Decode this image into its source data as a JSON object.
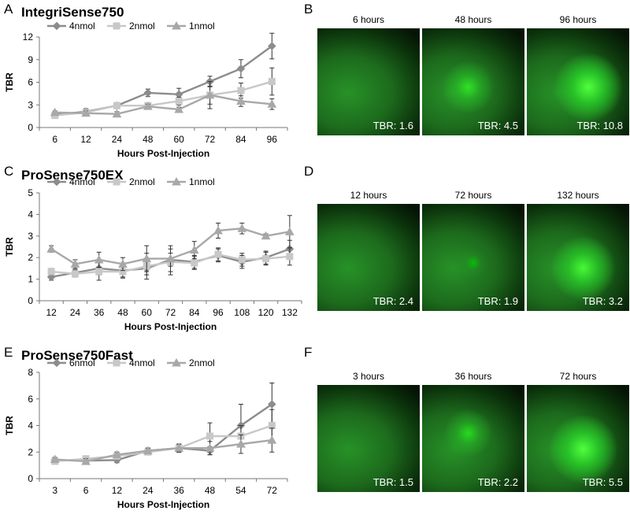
{
  "chart_data": [
    {
      "type": "line",
      "panel": "A",
      "title": "IntegriSense750",
      "xlabel": "Hours Post-Injection",
      "ylabel": "TBR",
      "categories": [
        "6",
        "12",
        "24",
        "48",
        "60",
        "72",
        "84",
        "96"
      ],
      "ylim": [
        0,
        12
      ],
      "yticks": [
        0,
        3,
        6,
        9,
        12
      ],
      "legend": "top",
      "grid": false,
      "series": [
        {
          "name": "4nmol",
          "marker": "diamond",
          "color": "#8c8c8c",
          "values": [
            1.7,
            2.1,
            2.9,
            4.6,
            4.4,
            6.1,
            7.8,
            10.8
          ],
          "errors": [
            0.3,
            0.4,
            0.4,
            0.5,
            0.8,
            0.7,
            1.2,
            1.7
          ]
        },
        {
          "name": "2nmol",
          "marker": "square",
          "color": "#c8c8c8",
          "values": [
            1.6,
            2.0,
            2.9,
            2.9,
            3.5,
            4.3,
            4.9,
            6.1
          ],
          "errors": [
            0.3,
            0.3,
            0.3,
            0.4,
            0.5,
            1.2,
            1.0,
            1.8
          ]
        },
        {
          "name": "1nmol",
          "marker": "triangle",
          "color": "#a8a8a8",
          "values": [
            2.0,
            1.9,
            1.8,
            2.8,
            2.4,
            4.3,
            3.5,
            3.1
          ],
          "errors": [
            0.2,
            0.3,
            0.3,
            0.3,
            0.3,
            1.8,
            0.7,
            0.7
          ]
        }
      ]
    },
    {
      "type": "line",
      "panel": "C",
      "title": "ProSense750EX",
      "xlabel": "Hours Post-Injection",
      "ylabel": "TBR",
      "categories": [
        "12",
        "24",
        "36",
        "48",
        "60",
        "72",
        "84",
        "96",
        "108",
        "120",
        "132"
      ],
      "ylim": [
        0,
        5
      ],
      "yticks": [
        0,
        1,
        2,
        3,
        4,
        5
      ],
      "legend": "top",
      "grid": false,
      "series": [
        {
          "name": "4nmol",
          "marker": "diamond",
          "color": "#8c8c8c",
          "values": [
            1.1,
            1.3,
            1.5,
            1.4,
            1.5,
            1.9,
            1.8,
            2.1,
            1.8,
            2.0,
            2.4
          ],
          "errors": [
            0.15,
            0.15,
            0.3,
            0.3,
            0.3,
            0.3,
            0.3,
            0.3,
            0.3,
            0.3,
            0.4
          ]
        },
        {
          "name": "2nmol",
          "marker": "square",
          "color": "#c8c8c8",
          "values": [
            1.35,
            1.25,
            1.35,
            1.35,
            1.6,
            1.8,
            1.75,
            2.15,
            1.9,
            1.95,
            2.05
          ],
          "errors": [
            0.15,
            0.15,
            0.4,
            0.3,
            0.6,
            0.6,
            0.3,
            0.3,
            0.3,
            0.3,
            0.4
          ]
        },
        {
          "name": "1nmol",
          "marker": "triangle",
          "color": "#a8a8a8",
          "values": [
            2.4,
            1.7,
            1.9,
            1.7,
            1.95,
            1.95,
            2.35,
            3.25,
            3.35,
            3.0,
            3.2
          ],
          "errors": [
            0.15,
            0.2,
            0.35,
            0.3,
            0.6,
            0.6,
            0.4,
            0.35,
            0.25,
            0.1,
            0.75
          ]
        }
      ]
    },
    {
      "type": "line",
      "panel": "E",
      "title": "ProSense750Fast",
      "xlabel": "Hours Post-Injection",
      "ylabel": "TBR",
      "categories": [
        "3",
        "6",
        "12",
        "24",
        "36",
        "48",
        "54",
        "72"
      ],
      "ylim": [
        0,
        8
      ],
      "yticks": [
        0,
        2,
        4,
        6,
        8
      ],
      "legend": "top",
      "grid": false,
      "series": [
        {
          "name": "6nmol",
          "marker": "diamond",
          "color": "#8c8c8c",
          "values": [
            1.4,
            1.35,
            1.4,
            2.1,
            2.3,
            2.1,
            4.0,
            5.6
          ],
          "errors": [
            0.15,
            0.2,
            0.2,
            0.2,
            0.3,
            0.3,
            1.6,
            1.6
          ]
        },
        {
          "name": "4nmol",
          "marker": "square",
          "color": "#c8c8c8",
          "values": [
            1.3,
            1.5,
            1.7,
            2.0,
            2.3,
            3.2,
            3.2,
            4.0
          ],
          "errors": [
            0.15,
            0.2,
            0.2,
            0.2,
            0.3,
            1.0,
            0.8,
            1.2
          ]
        },
        {
          "name": "2nmol",
          "marker": "triangle",
          "color": "#a8a8a8",
          "values": [
            1.45,
            1.3,
            1.8,
            2.1,
            2.3,
            2.3,
            2.6,
            2.9
          ],
          "errors": [
            0.15,
            0.2,
            0.2,
            0.2,
            0.3,
            0.5,
            0.7,
            0.9
          ]
        }
      ]
    }
  ],
  "image_panels": [
    {
      "panel": "B",
      "images": [
        {
          "time": "6 hours",
          "tbr": "TBR: 1.6",
          "spot": 0.0
        },
        {
          "time": "48 hours",
          "tbr": "TBR: 4.5",
          "spot": 0.6
        },
        {
          "time": "96 hours",
          "tbr": "TBR: 10.8",
          "spot": 1.0
        }
      ]
    },
    {
      "panel": "D",
      "images": [
        {
          "time": "12 hours",
          "tbr": "TBR: 2.4",
          "spot": 0.0
        },
        {
          "time": "72 hours",
          "tbr": "TBR: 1.9",
          "spot": 0.1
        },
        {
          "time": "132 hours",
          "tbr": "TBR: 3.2",
          "spot": 0.9
        }
      ]
    },
    {
      "panel": "F",
      "images": [
        {
          "time": "3 hours",
          "tbr": "TBR: 1.5",
          "spot": 0.0
        },
        {
          "time": "36 hours",
          "tbr": "TBR: 2.2",
          "spot": 0.5
        },
        {
          "time": "72 hours",
          "tbr": "TBR: 5.5",
          "spot": 1.0
        }
      ]
    }
  ]
}
